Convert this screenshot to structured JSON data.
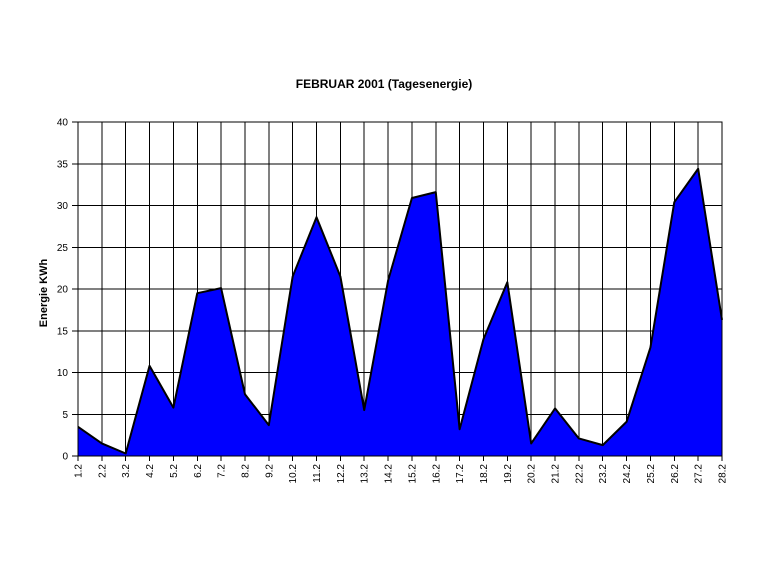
{
  "chart_data": {
    "type": "area",
    "title": "FEBRUAR 2001 (Tagesenergie)",
    "ylabel": "Energie KWh",
    "xlabel": "",
    "categories": [
      "1.2",
      "2.2",
      "3.2",
      "4.2",
      "5.2",
      "6.2",
      "7.2",
      "8.2",
      "9.2",
      "10.2",
      "11.2",
      "12.2",
      "13.2",
      "14.2",
      "15.2",
      "16.2",
      "17.2",
      "18.2",
      "19.2",
      "20.2",
      "21.2",
      "22.2",
      "23.2",
      "24.2",
      "25.2",
      "26.2",
      "27.2",
      "28.2"
    ],
    "values": [
      3.5,
      1.5,
      0.3,
      10.8,
      5.8,
      19.5,
      20.1,
      7.4,
      3.7,
      21.5,
      28.6,
      21.5,
      5.5,
      21.0,
      30.9,
      31.6,
      3.2,
      14.0,
      20.8,
      1.5,
      5.7,
      2.1,
      1.3,
      4.1,
      13.0,
      30.4,
      34.4,
      16.3
    ],
    "ylim": [
      0,
      40
    ],
    "ytick_step": 5,
    "grid": true,
    "legend": "none",
    "series_color": "#0000FF",
    "outline_color": "#000000",
    "gridline_color": "#000000",
    "background_color": "#FFFFFF"
  }
}
